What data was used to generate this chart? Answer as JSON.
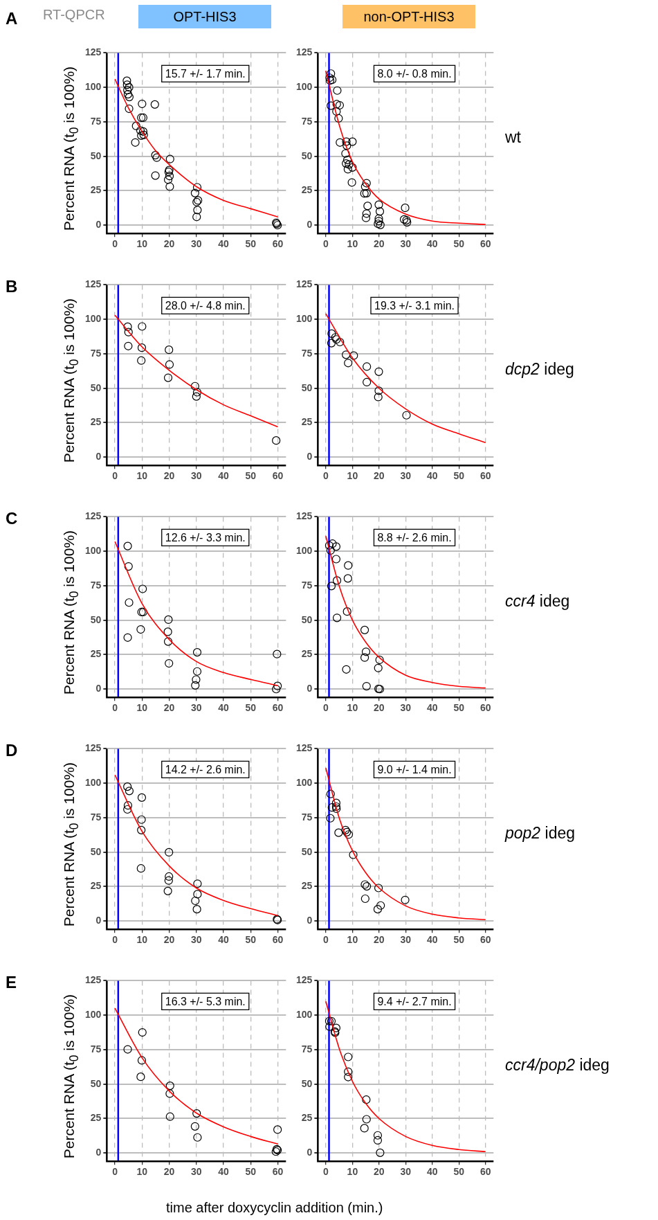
{
  "chart_data": [
    {
      "type": "scatter",
      "title": "OPT-HIS3",
      "ylabel": "Percent RNA (t$_{0}$ is 100%)",
      "annotations": [
        "15.7 +/- 1.7 min.",
        "A",
        "RT-QPCR"
      ],
      "xlim": [
        -3,
        63
      ],
      "ylim": [
        -6,
        125
      ],
      "xticks": [
        0,
        10,
        20,
        30,
        40,
        50,
        60
      ],
      "yticks": [
        0,
        25,
        50,
        75,
        100,
        125
      ],
      "grid": true,
      "marker": "circle",
      "ref_lines": [
        {
          "axis": "x",
          "value": 1.2,
          "color": "#0000ff"
        }
      ],
      "series": [
        {
          "type": "scatter",
          "color": "#000000",
          "x": [
            4.4,
            4.5,
            5.2,
            4.6,
            4.8,
            5.3,
            5.2,
            7.8,
            7.5,
            10,
            9.7,
            10.4,
            9.4,
            10.4,
            9.7,
            10.6,
            14.7,
            14.9,
            15.4,
            14.9,
            20.3,
            20,
            19.8,
            20.1,
            19.6,
            20.2,
            30.3,
            29.5,
            30.1,
            30.6,
            30.4,
            30.1,
            59.4,
            59.9,
            59.6
          ],
          "values": [
            104.8,
            101.9,
            100,
            98,
            95,
            93,
            84.5,
            72,
            60,
            88,
            78,
            78,
            68.7,
            68,
            65,
            65.5,
            87.6,
            50.8,
            49,
            36,
            48,
            40,
            38.7,
            35.7,
            33,
            28,
            27.5,
            23.3,
            16.8,
            18,
            11,
            6,
            1.7,
            0,
            1
          ]
        },
        {
          "type": "line",
          "color": "#ff0000",
          "x": [
            0,
            5,
            10,
            15,
            20,
            30,
            40,
            50,
            60
          ],
          "marker": "none",
          "values": [
            106,
            85,
            68,
            54,
            44,
            28,
            18,
            12,
            6
          ]
        }
      ]
    },
    {
      "type": "scatter",
      "title": "non-OPT-HIS3",
      "annotations": [
        "8.0 +/- 0.8 min.",
        "wt"
      ],
      "xlim": [
        -3,
        63
      ],
      "ylim": [
        -6,
        125
      ],
      "xticks": [
        0,
        10,
        20,
        30,
        40,
        50,
        60
      ],
      "yticks": [
        0,
        25,
        50,
        75,
        100,
        125
      ],
      "grid": true,
      "marker": "circle",
      "ref_lines": [
        {
          "axis": "x",
          "value": 1.2,
          "color": "#0000ff"
        }
      ],
      "series": [
        {
          "type": "scatter",
          "color": "#000000",
          "x": [
            1.9,
            1.4,
            2.4,
            1.6,
            1.9,
            4.3,
            4.1,
            5.2,
            4,
            4.8,
            5.3,
            7.7,
            7.9,
            10,
            7.4,
            8.1,
            7.6,
            8.7,
            8.3,
            10,
            9.8,
            15.3,
            14.8,
            14.5,
            15.3,
            15.7,
            15.3,
            15.1,
            19.9,
            20.3,
            19.9,
            19.9,
            19.6,
            20.5,
            29.8,
            29.4,
            30.3,
            30.5
          ],
          "values": [
            110,
            107,
            105.5,
            105,
            86.7,
            97.7,
            87.8,
            87,
            82.5,
            77.5,
            60,
            60.6,
            57.7,
            60.6,
            52,
            47.4,
            44.8,
            44,
            40.6,
            41.9,
            31,
            30.5,
            28,
            23,
            23.2,
            14,
            8.4,
            5.3,
            14.9,
            10,
            4.8,
            3,
            1,
            0.2,
            12.6,
            4.2,
            3.6,
            2.1
          ]
        },
        {
          "type": "line",
          "color": "#ff0000",
          "x": [
            0,
            5,
            10,
            15,
            20,
            30,
            40,
            50,
            60
          ],
          "marker": "none",
          "values": [
            112,
            73,
            46,
            30,
            19,
            8,
            3,
            1.5,
            0.5
          ]
        }
      ]
    },
    {
      "type": "scatter",
      "ylabel": "Percent RNA (t$_{0}$ is 100%)",
      "annotations": [
        "28.0 +/- 4.8 min.",
        "B"
      ],
      "xlim": [
        -3,
        63
      ],
      "ylim": [
        -6,
        125
      ],
      "xticks": [
        0,
        10,
        20,
        30,
        40,
        50,
        60
      ],
      "yticks": [
        0,
        25,
        50,
        75,
        100,
        125
      ],
      "grid": true,
      "marker": "circle",
      "ref_lines": [
        {
          "axis": "x",
          "value": 1.2,
          "color": "#0000ff"
        }
      ],
      "series": [
        {
          "type": "scatter",
          "color": "#000000",
          "x": [
            4.7,
            5,
            4.9,
            10,
            9.9,
            9.7,
            19.9,
            20.1,
            19.6,
            29.5,
            30.3,
            30
          ],
          "values": [
            94.6,
            90.7,
            80.6,
            94.8,
            79.4,
            70.1,
            77.9,
            67.2,
            57.6,
            51.5,
            47.1,
            44
          ]
        },
        {
          "type": "scatter",
          "color": "#000000",
          "x": [
            59.4
          ],
          "values": [
            12.1
          ]
        },
        {
          "type": "line",
          "color": "#ff0000",
          "x": [
            0,
            10,
            20,
            30,
            40,
            50,
            60
          ],
          "marker": "none",
          "values": [
            103,
            80,
            63,
            49,
            38,
            30,
            22
          ]
        }
      ]
    },
    {
      "type": "scatter",
      "annotations": [
        "19.3 +/- 3.1 min.",
        "dcp2 ideg"
      ],
      "xlim": [
        -3,
        63
      ],
      "ylim": [
        -6,
        125
      ],
      "xticks": [
        0,
        10,
        20,
        30,
        40,
        50,
        60
      ],
      "yticks": [
        0,
        25,
        50,
        75,
        100,
        125
      ],
      "grid": true,
      "marker": "circle",
      "ref_lines": [
        {
          "axis": "x",
          "value": 1.2,
          "color": "#0000ff"
        }
      ],
      "series": [
        {
          "type": "scatter",
          "color": "#000000",
          "x": [
            2.2,
            2.1,
            3.6,
            4,
            5.3,
            7.6,
            8.4,
            10.5,
            15.4,
            15.4,
            19.9,
            19.9,
            19.7,
            30.3
          ],
          "values": [
            89.6,
            82.7,
            86.9,
            85.4,
            83.5,
            74.3,
            68.3,
            73.7,
            65.7,
            54.4,
            62,
            48.2,
            43.6,
            30.4
          ]
        },
        {
          "type": "line",
          "color": "#ff0000",
          "x": [
            0,
            10,
            20,
            30,
            40,
            50,
            60
          ],
          "marker": "none",
          "values": [
            104,
            72,
            50,
            35,
            24,
            17,
            10.5
          ]
        }
      ]
    },
    {
      "type": "scatter",
      "ylabel": "Percent RNA (t$_{0}$ is 100%)",
      "annotations": [
        "12.6 +/- 3.3 min.",
        "C"
      ],
      "xlim": [
        -3,
        63
      ],
      "ylim": [
        -6,
        125
      ],
      "xticks": [
        0,
        10,
        20,
        30,
        40,
        50,
        60
      ],
      "yticks": [
        0,
        25,
        50,
        75,
        100,
        125
      ],
      "grid": true,
      "marker": "circle",
      "ref_lines": [
        {
          "axis": "x",
          "value": 1.2,
          "color": "#0000ff"
        }
      ],
      "series": [
        {
          "type": "scatter",
          "color": "#000000",
          "x": [
            4.7,
            5,
            5.2,
            4.7,
            10.2,
            9.8,
            10.4,
            9.5,
            19.7,
            19.5,
            19.6,
            19.9,
            30.3,
            30.3,
            29.9,
            29.6,
            59.7,
            59.9,
            59.4
          ],
          "values": [
            103.8,
            89,
            62.8,
            37.4,
            72.7,
            55.9,
            55.9,
            43.3,
            50.4,
            41.6,
            34.5,
            18.7,
            26.7,
            12.8,
            6.9,
            2.7,
            25.4,
            2.3,
            0
          ]
        },
        {
          "type": "line",
          "color": "#ff0000",
          "x": [
            0,
            10,
            20,
            30,
            40,
            50,
            60
          ],
          "marker": "none",
          "values": [
            107,
            62,
            36,
            20,
            12,
            7,
            2.5
          ]
        }
      ]
    },
    {
      "type": "scatter",
      "annotations": [
        "8.8 +/- 2.6 min.",
        "ccr4 ideg"
      ],
      "xlim": [
        -3,
        63
      ],
      "ylim": [
        -6,
        125
      ],
      "xticks": [
        0,
        10,
        20,
        30,
        40,
        50,
        60
      ],
      "yticks": [
        0,
        25,
        50,
        75,
        100,
        125
      ],
      "grid": true,
      "marker": "circle",
      "ref_lines": [
        {
          "axis": "x",
          "value": 1.2,
          "color": "#0000ff"
        }
      ],
      "series": [
        {
          "type": "scatter",
          "color": "#000000",
          "x": [
            1.3,
            2.5,
            1.8,
            2.1,
            3.9,
            3.9,
            4.2,
            4.2,
            8.4,
            8.3,
            8,
            7.7,
            14.6,
            15.1,
            14.6,
            15.3,
            20.2,
            19.7,
            19.8,
            20.3
          ],
          "values": [
            104.2,
            105.5,
            100.6,
            74.8,
            103.4,
            94.3,
            78.8,
            51.7,
            89.7,
            80.3,
            56.3,
            14.3,
            42.9,
            27.1,
            22.9,
            2.1,
            21.2,
            15.3,
            0.2,
            0
          ]
        },
        {
          "type": "line",
          "color": "#ff0000",
          "x": [
            0,
            5,
            10,
            15,
            20,
            30,
            40,
            50,
            60
          ],
          "marker": "none",
          "values": [
            111,
            75,
            50,
            34,
            23,
            10,
            4.8,
            2,
            0.8
          ]
        }
      ]
    },
    {
      "type": "scatter",
      "ylabel": "Percent RNA (t$_{0}$ is 100%)",
      "annotations": [
        "14.2 +/- 2.6 min.",
        "D"
      ],
      "xlim": [
        -3,
        63
      ],
      "ylim": [
        -6,
        125
      ],
      "xticks": [
        0,
        10,
        20,
        30,
        40,
        50,
        60
      ],
      "yticks": [
        0,
        25,
        50,
        75,
        100,
        125
      ],
      "grid": true,
      "marker": "circle",
      "ref_lines": [
        {
          "axis": "x",
          "value": 1.2,
          "color": "#0000ff"
        }
      ],
      "series": [
        {
          "type": "scatter",
          "color": "#000000",
          "x": [
            4.6,
            5.3,
            4.8,
            4.6,
            9.9,
            9.8,
            9.7,
            9.6,
            19.9,
            19.9,
            19.8,
            19.5,
            30.4,
            30.4,
            29.6,
            30.2,
            59.7,
            59.9
          ],
          "values": [
            97.5,
            94.4,
            83.9,
            81,
            89.6,
            73.6,
            66,
            38.2,
            49.9,
            32.3,
            29.4,
            21.8,
            27.1,
            19.5,
            14.7,
            8.6,
            1.3,
            0.8
          ]
        },
        {
          "type": "line",
          "color": "#ff0000",
          "x": [
            0,
            10,
            20,
            30,
            40,
            50,
            60
          ],
          "marker": "none",
          "values": [
            106,
            65,
            40,
            24,
            15,
            9,
            4
          ]
        }
      ]
    },
    {
      "type": "scatter",
      "annotations": [
        "9.0 +/- 1.4 min.",
        "pop2 ideg"
      ],
      "xlim": [
        -3,
        63
      ],
      "ylim": [
        -6,
        125
      ],
      "xticks": [
        0,
        10,
        20,
        30,
        40,
        50,
        60
      ],
      "yticks": [
        0,
        25,
        50,
        75,
        100,
        125
      ],
      "grid": true,
      "marker": "circle",
      "ref_lines": [
        {
          "axis": "x",
          "value": 1.2,
          "color": "#0000ff"
        }
      ],
      "series": [
        {
          "type": "scatter",
          "color": "#000000",
          "x": [
            1.8,
            1.7,
            2.3,
            3.9,
            3.9,
            4,
            4.8,
            7.4,
            7.9,
            8.6,
            10.3,
            14.7,
            15.4,
            14.8,
            19.8,
            20.6,
            19.5,
            29.8
          ],
          "values": [
            92.2,
            74.6,
            82.4,
            85.7,
            83,
            81.5,
            64.1,
            66,
            64.5,
            62.8,
            48.1,
            26.5,
            25.2,
            16.2,
            24,
            11.3,
            8.6,
            15.3
          ]
        },
        {
          "type": "line",
          "color": "#ff0000",
          "x": [
            0,
            5,
            10,
            15,
            20,
            30,
            40,
            50,
            60
          ],
          "marker": "none",
          "values": [
            111,
            75,
            51,
            35,
            24,
            11,
            5,
            2.3,
            1
          ]
        }
      ]
    },
    {
      "type": "scatter",
      "ylabel": "Percent RNA (t$_{0}$ is 100%)",
      "xlabel": "time after doxycyclin addition (min.)",
      "annotations": [
        "16.3 +/- 5.3 min.",
        "E"
      ],
      "xlim": [
        -3,
        63
      ],
      "ylim": [
        -6,
        125
      ],
      "xticks": [
        0,
        10,
        20,
        30,
        40,
        50,
        60
      ],
      "yticks": [
        0,
        25,
        50,
        75,
        100,
        125
      ],
      "grid": true,
      "marker": "circle",
      "ref_lines": [
        {
          "axis": "x",
          "value": 1.2,
          "color": "#0000ff"
        }
      ],
      "series": [
        {
          "type": "scatter",
          "color": "#000000",
          "x": [
            4.7,
            10.1,
            9.9,
            9.5,
            20.3,
            20.2,
            20.3,
            30.1,
            29.5,
            30.4,
            59.9,
            59.6,
            59.9,
            59.3
          ],
          "values": [
            75.2,
            87.5,
            67.2,
            55.3,
            48.8,
            43.1,
            26.4,
            28.7,
            19.3,
            11.3,
            17,
            2.7,
            2.1,
            1
          ]
        },
        {
          "type": "line",
          "color": "#ff0000",
          "x": [
            0,
            10,
            20,
            30,
            40,
            50,
            60
          ],
          "marker": "none",
          "values": [
            105,
            69,
            45,
            29,
            19,
            12,
            6.5
          ]
        }
      ]
    },
    {
      "type": "scatter",
      "annotations": [
        "9.4 +/- 2.7 min.",
        "ccr4/pop2 ideg"
      ],
      "xlim": [
        -3,
        63
      ],
      "ylim": [
        -6,
        125
      ],
      "xticks": [
        0,
        10,
        20,
        30,
        40,
        50,
        60
      ],
      "yticks": [
        0,
        25,
        50,
        75,
        100,
        125
      ],
      "grid": true,
      "marker": "circle",
      "ref_lines": [
        {
          "axis": "x",
          "value": 1.2,
          "color": "#0000ff"
        }
      ],
      "series": [
        {
          "type": "scatter",
          "color": "#000000",
          "x": [
            1.3,
            2.1,
            1.4,
            3.9,
            3.4,
            3.5,
            8.4,
            8.4,
            8.4,
            15.2,
            15.3,
            14.5,
            19.5,
            19.5,
            20.4
          ],
          "values": [
            95.7,
            95.7,
            91.7,
            90.7,
            88.1,
            87.3,
            69.7,
            59,
            55.1,
            38.7,
            24.5,
            18,
            12.8,
            9.2,
            0.2
          ]
        },
        {
          "type": "line",
          "color": "#ff0000",
          "x": [
            0,
            5,
            10,
            15,
            20,
            30,
            40,
            50,
            60
          ],
          "marker": "none",
          "values": [
            110,
            76,
            52,
            36,
            25,
            12,
            5.5,
            2.5,
            1
          ]
        }
      ]
    }
  ]
}
